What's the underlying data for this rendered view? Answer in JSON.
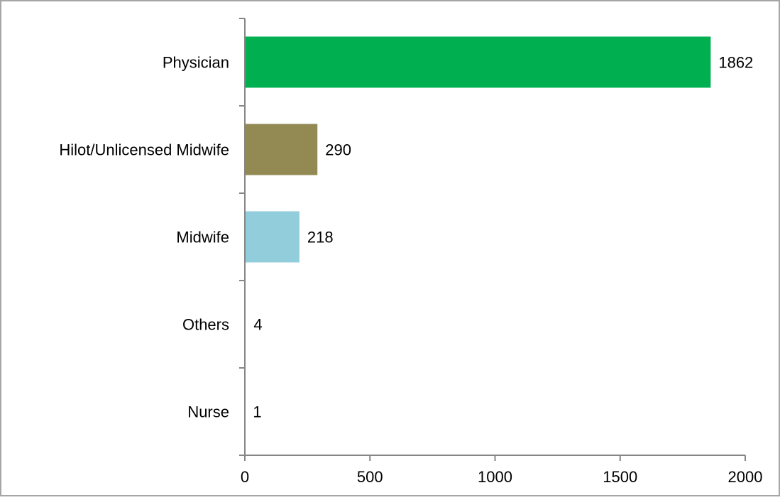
{
  "chart_data": {
    "type": "bar",
    "orientation": "horizontal",
    "categories": [
      "Physician",
      "Hilot/Unlicensed Midwife",
      "Midwife",
      "Others",
      "Nurse"
    ],
    "values": [
      1862,
      290,
      218,
      4,
      1
    ],
    "value_labels": [
      "1862",
      "290",
      "218",
      "4",
      "1"
    ],
    "bar_colors": [
      "#00b050",
      "#938953",
      "#92cddc",
      "#ffffff",
      "#ffffff"
    ],
    "xlim": [
      0,
      2000
    ],
    "x_ticks": [
      0,
      500,
      1000,
      1500,
      2000
    ],
    "x_tick_labels": [
      "0",
      "500",
      "1000",
      "1500",
      "2000"
    ],
    "grid": false,
    "legend": "none",
    "title": "",
    "xlabel": "",
    "ylabel": ""
  }
}
